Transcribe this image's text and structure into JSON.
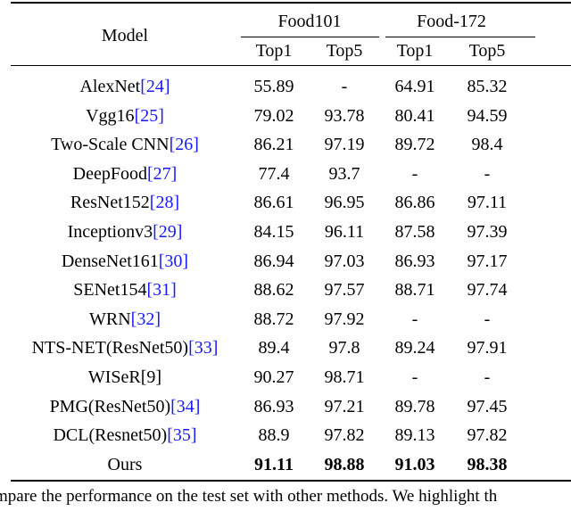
{
  "table": {
    "header": {
      "model": "Model",
      "groups": [
        "Food101",
        "Food-172"
      ],
      "metrics": [
        "Top1",
        "Top5",
        "Top1",
        "Top5"
      ]
    },
    "rows": [
      {
        "model": "AlexNet",
        "ref": "[24]",
        "cells": [
          "55.89",
          "-",
          "64.91",
          "85.32"
        ]
      },
      {
        "model": "Vgg16",
        "ref": "[25]",
        "cells": [
          "79.02",
          "93.78",
          "80.41",
          "94.59"
        ]
      },
      {
        "model": "Two-Scale CNN",
        "ref": "[26]",
        "cells": [
          "86.21",
          "97.19",
          "89.72",
          "98.4"
        ]
      },
      {
        "model": "DeepFood",
        "ref": "[27]",
        "cells": [
          "77.4",
          "93.7",
          "-",
          "-"
        ]
      },
      {
        "model": "ResNet152",
        "ref": "[28]",
        "cells": [
          "86.61",
          "96.95",
          "86.86",
          "97.11"
        ]
      },
      {
        "model": "Inceptionv3",
        "ref": "[29]",
        "cells": [
          "84.15",
          "96.11",
          "87.58",
          "97.39"
        ]
      },
      {
        "model": "DenseNet161",
        "ref": "[30]",
        "cells": [
          "86.94",
          "97.03",
          "86.93",
          "97.17"
        ]
      },
      {
        "model": "SENet154",
        "ref": "[31]",
        "cells": [
          "88.62",
          "97.57",
          "88.71",
          "97.74"
        ]
      },
      {
        "model": "WRN",
        "ref": "[32]",
        "cells": [
          "88.72",
          "97.92",
          "-",
          "-"
        ]
      },
      {
        "model": "NTS-NET(ResNet50)",
        "ref": "[33]",
        "cells": [
          "89.4",
          "97.8",
          "89.24",
          "97.91"
        ]
      },
      {
        "model": "WISeR[9]",
        "cells": [
          "90.27",
          "98.71",
          "-",
          "-"
        ]
      },
      {
        "model": "PMG(ResNet50)",
        "ref": "[34]",
        "cells": [
          "86.93",
          "97.21",
          "89.78",
          "97.45"
        ]
      },
      {
        "model": "DCL(Resnet50)",
        "ref": "[35]",
        "cells": [
          "88.9",
          "97.82",
          "89.13",
          "97.82"
        ]
      },
      {
        "model": "Ours",
        "bold": true,
        "cells": [
          "91.11",
          "98.88",
          "91.03",
          "98.38"
        ]
      }
    ]
  },
  "caption": "mpare the performance on the test set with other methods. We highlight th"
}
